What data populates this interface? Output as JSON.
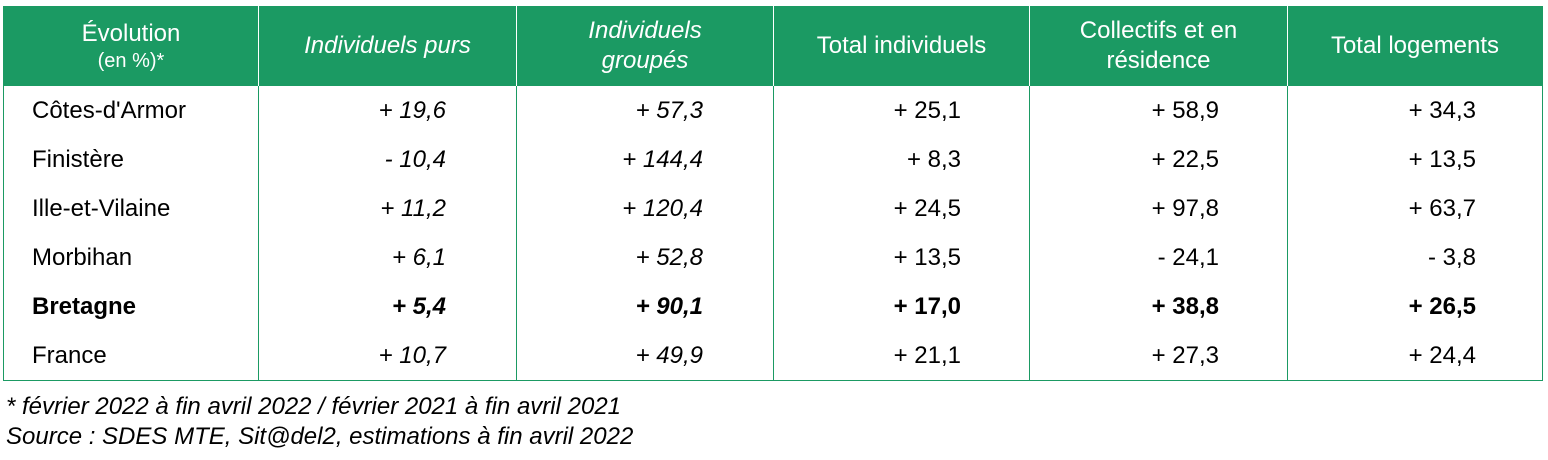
{
  "header": {
    "col0_line1": "Évolution",
    "col0_line2": "(en %)*",
    "col1": "Individuels purs",
    "col2_line1": "Individuels",
    "col2_line2": "groupés",
    "col3": "Total individuels",
    "col4_line1": "Collectifs et en",
    "col4_line2": "résidence",
    "col5": "Total logements"
  },
  "rows": [
    {
      "label": "Côtes-d'Armor",
      "v1": "+ 19,6",
      "v2": "+ 57,3",
      "v3": "+ 25,1",
      "v4": "+ 58,9",
      "v5": "+ 34,3"
    },
    {
      "label": "Finistère",
      "v1": "- 10,4",
      "v2": "+ 144,4",
      "v3": "+ 8,3",
      "v4": "+ 22,5",
      "v5": "+ 13,5"
    },
    {
      "label": "Ille-et-Vilaine",
      "v1": "+ 11,2",
      "v2": "+ 120,4",
      "v3": "+ 24,5",
      "v4": "+ 97,8",
      "v5": "+ 63,7"
    },
    {
      "label": "Morbihan",
      "v1": "+ 6,1",
      "v2": "+ 52,8",
      "v3": "+ 13,5",
      "v4": "- 24,1",
      "v5": "- 3,8"
    },
    {
      "label": "Bretagne",
      "v1": "+ 5,4",
      "v2": "+ 90,1",
      "v3": "+ 17,0",
      "v4": "+ 38,8",
      "v5": "+ 26,5"
    },
    {
      "label": "France",
      "v1": "+ 10,7",
      "v2": "+ 49,9",
      "v3": "+ 21,1",
      "v4": "+ 27,3",
      "v5": "+ 24,4"
    }
  ],
  "notes": {
    "period": "* février 2022 à fin avril 2022 / février 2021 à fin avril 2021",
    "source": "Source : SDES MTE, Sit@del2, estimations à fin avril 2022"
  },
  "colors": {
    "header_bg": "#1b9a63",
    "header_text": "#ffffff",
    "border": "#1b9a63"
  }
}
